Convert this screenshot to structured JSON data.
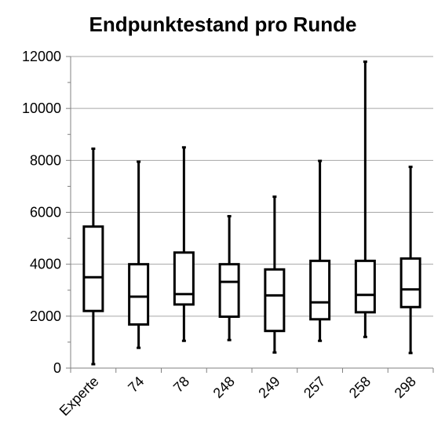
{
  "chart_data": {
    "type": "boxplot",
    "title": "Endpunktestand pro Runde",
    "xlabel": "",
    "ylabel": "",
    "ylim": [
      0,
      12000
    ],
    "yticks": [
      0,
      2000,
      4000,
      6000,
      8000,
      10000,
      12000
    ],
    "grid": true,
    "legend": "none",
    "categories": [
      "Experte",
      "74",
      "78",
      "248",
      "249",
      "257",
      "258",
      "298"
    ],
    "boxes": [
      {
        "category": "Experte",
        "min": 150,
        "q1": 2200,
        "median": 3500,
        "q3": 5450,
        "max": 8450
      },
      {
        "category": "74",
        "min": 780,
        "q1": 1680,
        "median": 2750,
        "q3": 4000,
        "max": 7950
      },
      {
        "category": "78",
        "min": 1050,
        "q1": 2450,
        "median": 2850,
        "q3": 4450,
        "max": 8500
      },
      {
        "category": "248",
        "min": 1080,
        "q1": 1980,
        "median": 3320,
        "q3": 4000,
        "max": 5850
      },
      {
        "category": "249",
        "min": 600,
        "q1": 1430,
        "median": 2800,
        "q3": 3800,
        "max": 6600
      },
      {
        "category": "257",
        "min": 1050,
        "q1": 1880,
        "median": 2530,
        "q3": 4130,
        "max": 7980
      },
      {
        "category": "258",
        "min": 1200,
        "q1": 2150,
        "median": 2820,
        "q3": 4130,
        "max": 11800
      },
      {
        "category": "298",
        "min": 580,
        "q1": 2350,
        "median": 3030,
        "q3": 4220,
        "max": 7750
      }
    ],
    "colors": {
      "box_stroke": "#000000",
      "grid": "#a6a6a6",
      "axis": "#808080"
    }
  }
}
